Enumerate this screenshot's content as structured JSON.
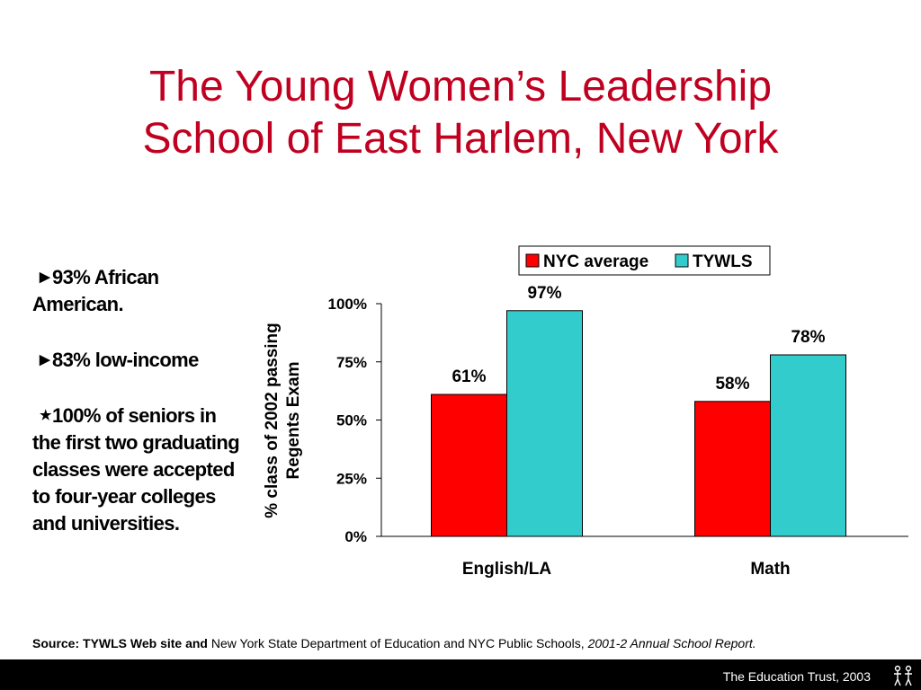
{
  "slide": {
    "title_line1": "The Young Women’s Leadership",
    "title_line2": "School of East Harlem, New York"
  },
  "bullets": [
    {
      "marker": "arrow",
      "text": "93% African American."
    },
    {
      "marker": "arrow",
      "text": "83% low-income"
    },
    {
      "marker": "star",
      "text": "100% of seniors in the first two graduating classes were accepted to four-year colleges and universities."
    }
  ],
  "source": {
    "label": "Source: TYWLS Web site and",
    "body": " New York State Department of Education and NYC Public Schools, ",
    "italic": "2001-2 Annual School Report."
  },
  "footer": {
    "text": "The Education Trust, 2003"
  },
  "colors": {
    "title": "#c00020",
    "nyc": "#ff0000",
    "tywls": "#33cccc",
    "footer_bg": "#000000"
  },
  "icons": {
    "bullet_arrow": "triangle-right-icon",
    "bullet_star": "star-icon",
    "logo": "education-trust-logo-icon"
  },
  "chart_data": {
    "type": "bar",
    "categories": [
      "English/LA",
      "Math"
    ],
    "series": [
      {
        "name": "NYC average",
        "values": [
          61,
          58
        ],
        "labels": [
          "61%",
          "58%"
        ],
        "color": "#ff0000"
      },
      {
        "name": "TYWLS",
        "values": [
          97,
          78
        ],
        "labels": [
          "97%",
          "78%"
        ],
        "color": "#33cccc"
      }
    ],
    "ylabel_line1": "% class of 2002 passing",
    "ylabel_line2": "Regents Exam",
    "yticks": [
      "0%",
      "25%",
      "50%",
      "75%",
      "100%"
    ],
    "ylim": [
      0,
      100
    ],
    "legend_position": "top-right",
    "grid": false
  }
}
